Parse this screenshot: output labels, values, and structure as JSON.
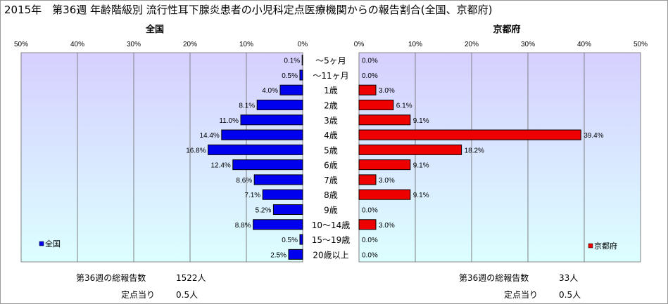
{
  "title": "2015年　第36週 年齢階級別 流行性耳下腺炎患者の小児科定点医療機関からの報告割合(全国、京都府)",
  "colors": {
    "national": "#0000ee",
    "kyoto": "#ee0000",
    "plot_top": "#d6d0ff",
    "plot_bottom": "#dcffff",
    "border": "#000000"
  },
  "footer": {
    "national": {
      "total_label": "第36週の総報告数",
      "total_value": "1522人",
      "per_label": "定点当り",
      "per_value": "0.5人"
    },
    "kyoto": {
      "total_label": "第36週の総報告数",
      "total_value": "33人",
      "per_label": "定点当り",
      "per_value": "0.5人"
    }
  },
  "chart_data": [
    {
      "type": "bar",
      "orientation": "horizontal",
      "direction": "right-to-left",
      "title": "全国",
      "legend": "全国",
      "legend_position": "bottom-left",
      "xlim": [
        0,
        50
      ],
      "x_ticks": [
        "50%",
        "40%",
        "30%",
        "20%",
        "10%",
        "0%"
      ],
      "categories": [
        "～5ヶ月",
        "～11ヶ月",
        "1歳",
        "2歳",
        "3歳",
        "4歳",
        "5歳",
        "6歳",
        "7歳",
        "8歳",
        "9歳",
        "10～14歳",
        "15～19歳",
        "20歳以上"
      ],
      "series": [
        {
          "name": "全国",
          "values": [
            0.1,
            0.5,
            4.0,
            8.1,
            11.0,
            14.4,
            16.8,
            12.4,
            8.6,
            7.1,
            5.2,
            8.8,
            0.5,
            2.5
          ],
          "labels": [
            "0.1%",
            "0.5%",
            "4.0%",
            "8.1%",
            "11.0%",
            "14.4%",
            "16.8%",
            "12.4%",
            "8.6%",
            "7.1%",
            "5.2%",
            "8.8%",
            "0.5%",
            "2.5%"
          ]
        }
      ],
      "grid": true
    },
    {
      "type": "bar",
      "orientation": "horizontal",
      "title": "京都府",
      "legend": "京都府",
      "legend_position": "bottom-right",
      "xlim": [
        0,
        50
      ],
      "x_ticks": [
        "0%",
        "10%",
        "20%",
        "30%",
        "40%",
        "50%"
      ],
      "categories": [
        "～5ヶ月",
        "～11ヶ月",
        "1歳",
        "2歳",
        "3歳",
        "4歳",
        "5歳",
        "6歳",
        "7歳",
        "8歳",
        "9歳",
        "10～14歳",
        "15～19歳",
        "20歳以上"
      ],
      "series": [
        {
          "name": "京都府",
          "values": [
            0.0,
            0.0,
            3.0,
            6.1,
            9.1,
            39.4,
            18.2,
            9.1,
            3.0,
            9.1,
            0.0,
            3.0,
            0.0,
            0.0
          ],
          "labels": [
            "0.0%",
            "0.0%",
            "3.0%",
            "6.1%",
            "9.1%",
            "39.4%",
            "18.2%",
            "9.1%",
            "3.0%",
            "9.1%",
            "0.0%",
            "3.0%",
            "0.0%",
            "0.0%"
          ]
        }
      ],
      "grid": true
    }
  ]
}
